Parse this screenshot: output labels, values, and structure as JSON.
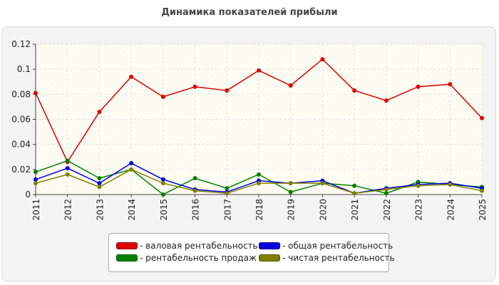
{
  "chart_data": {
    "type": "line",
    "title": "Динамика показателей прибыли",
    "xlabel": "",
    "ylabel": "",
    "categories": [
      "2011",
      "2012",
      "2013",
      "2014",
      "2015",
      "2016",
      "2017",
      "2018",
      "2019",
      "2020",
      "2021",
      "2022",
      "2023",
      "2024",
      "2025"
    ],
    "ylim": [
      0,
      0.12
    ],
    "yticks": [
      0,
      0.02,
      0.04,
      0.06,
      0.08,
      0.1,
      0.12
    ],
    "ytick_labels": [
      "0",
      "0.02",
      "0.04",
      "0.06",
      "0.08",
      "0.1",
      "0.12"
    ],
    "grid": true,
    "legend_position": "bottom",
    "series": [
      {
        "name": "- валовая рентабельность",
        "color": "#dd0000",
        "values": [
          0.081,
          0.026,
          0.066,
          0.094,
          0.078,
          0.086,
          0.083,
          0.099,
          0.087,
          0.108,
          0.083,
          0.075,
          0.086,
          0.088,
          0.061
        ]
      },
      {
        "name": "- рентабельность продаж",
        "color": "#008000",
        "values": [
          0.018,
          0.027,
          0.013,
          0.02,
          0.0,
          0.013,
          0.005,
          0.016,
          0.002,
          0.009,
          0.007,
          0.001,
          0.01,
          0.008,
          0.006
        ]
      },
      {
        "name": "- общая рентабельность",
        "color": "#0000dd",
        "values": [
          0.012,
          0.021,
          0.009,
          0.025,
          0.012,
          0.004,
          0.002,
          0.011,
          0.009,
          0.011,
          0.001,
          0.005,
          0.008,
          0.009,
          0.005
        ]
      },
      {
        "name": "- чистая рентабельность",
        "color": "#808000",
        "values": [
          0.009,
          0.016,
          0.006,
          0.02,
          0.009,
          0.003,
          0.001,
          0.009,
          0.009,
          0.009,
          0.001,
          0.004,
          0.007,
          0.008,
          0.003
        ]
      }
    ]
  }
}
